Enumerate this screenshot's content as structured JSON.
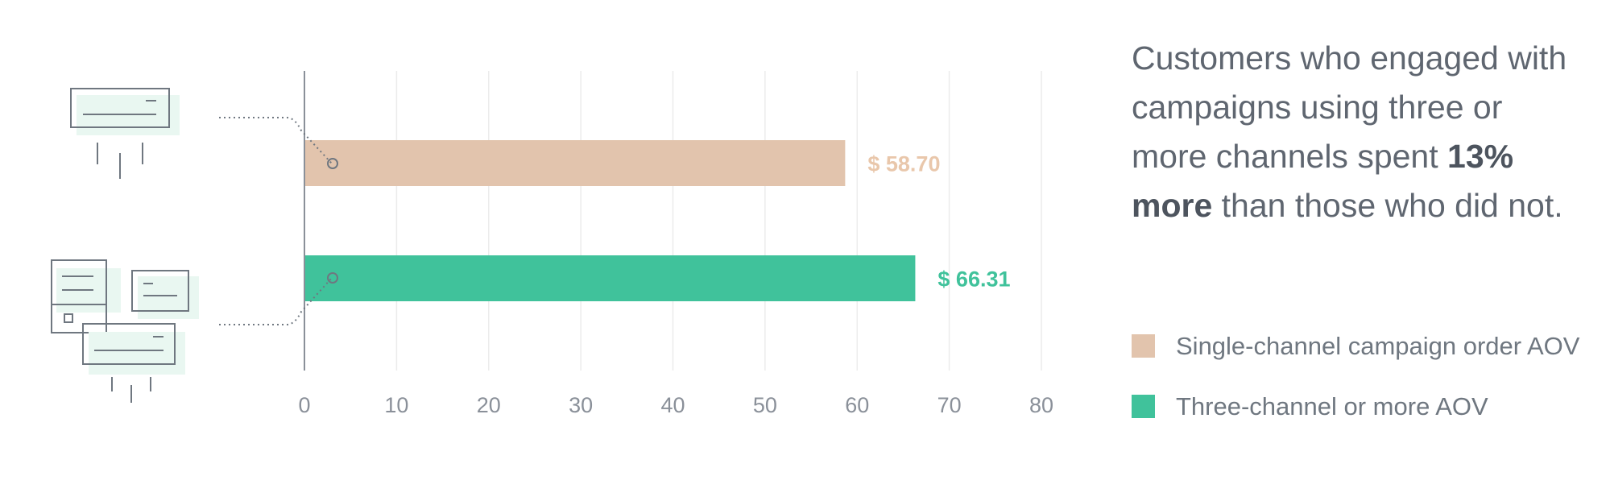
{
  "chart_data": {
    "type": "bar",
    "orientation": "horizontal",
    "categories": [
      "Single-channel campaign order AOV",
      "Three-channel or more AOV"
    ],
    "values": [
      58.7,
      66.31
    ],
    "value_labels": [
      "$ 58.70",
      "$ 66.31"
    ],
    "colors": [
      "#e2c4ad",
      "#40c29b"
    ],
    "label_colors": [
      "#e9c7ab",
      "#40c29b"
    ],
    "x_ticks": [
      "0",
      "10",
      "20",
      "30",
      "40",
      "50",
      "60",
      "70",
      "80"
    ],
    "xlim": [
      0,
      80
    ],
    "grid": true,
    "legend_position": "right",
    "title": "",
    "xlabel": "",
    "ylabel": ""
  },
  "callout": {
    "before": "Customers who engaged with campaigns using three or more channels spent ",
    "emphasis": "13% more",
    "after": " than those who did not."
  },
  "legend": [
    {
      "label": "Single-channel campaign order AOV",
      "color": "#e2c4ad"
    },
    {
      "label": "Three-channel or more AOV",
      "color": "#40c29b"
    }
  ],
  "icons": {
    "top": "single-envelope-icon",
    "bottom": "multiple-envelopes-icon"
  }
}
